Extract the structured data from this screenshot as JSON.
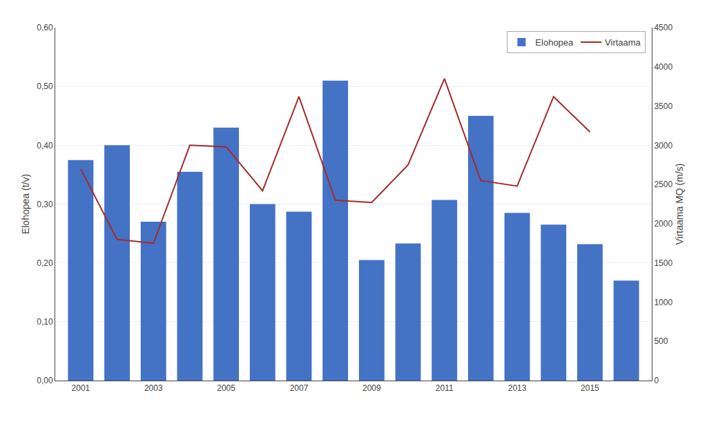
{
  "chart_data": {
    "type": "bar",
    "x": [
      2001,
      2002,
      2003,
      2004,
      2005,
      2006,
      2007,
      2008,
      2009,
      2010,
      2011,
      2012,
      2013,
      2014,
      2015,
      2016
    ],
    "series": [
      {
        "name": "Elohopea",
        "type": "bar",
        "color": "#4472C4",
        "values": [
          0.375,
          0.4,
          0.27,
          0.355,
          0.43,
          0.3,
          0.287,
          0.51,
          0.205,
          0.233,
          0.307,
          0.45,
          0.285,
          0.265,
          0.232,
          0.17
        ]
      },
      {
        "name": "Virtaama",
        "type": "line",
        "color": "#A52A2A",
        "axis": "y2",
        "values": [
          2700,
          1800,
          1750,
          3000,
          2980,
          2420,
          3620,
          2300,
          2270,
          2750,
          3850,
          2550,
          2480,
          3620,
          3170,
          null
        ]
      }
    ],
    "ylabel": "Elohopea (t/v)",
    "y2label": "Virtaama MQ (m/s)",
    "xlim": [
      2000.3,
      2016.7
    ],
    "xticks": [
      2001,
      2003,
      2005,
      2007,
      2009,
      2011,
      2013,
      2015
    ],
    "ylim": [
      0.0,
      0.6
    ],
    "yticks": [
      {
        "value": 0.0,
        "label": "0,00"
      },
      {
        "value": 0.1,
        "label": "0,10"
      },
      {
        "value": 0.2,
        "label": "0,20"
      },
      {
        "value": 0.3,
        "label": "0,30"
      },
      {
        "value": 0.4,
        "label": "0,40"
      },
      {
        "value": 0.5,
        "label": "0,50"
      },
      {
        "value": 0.6,
        "label": "0,60"
      }
    ],
    "y2lim": [
      0,
      4500
    ],
    "y2ticks": [
      0,
      500,
      1000,
      1500,
      2000,
      2500,
      3000,
      3500,
      4000,
      4500
    ],
    "grid": "y",
    "legend": "upper right"
  }
}
